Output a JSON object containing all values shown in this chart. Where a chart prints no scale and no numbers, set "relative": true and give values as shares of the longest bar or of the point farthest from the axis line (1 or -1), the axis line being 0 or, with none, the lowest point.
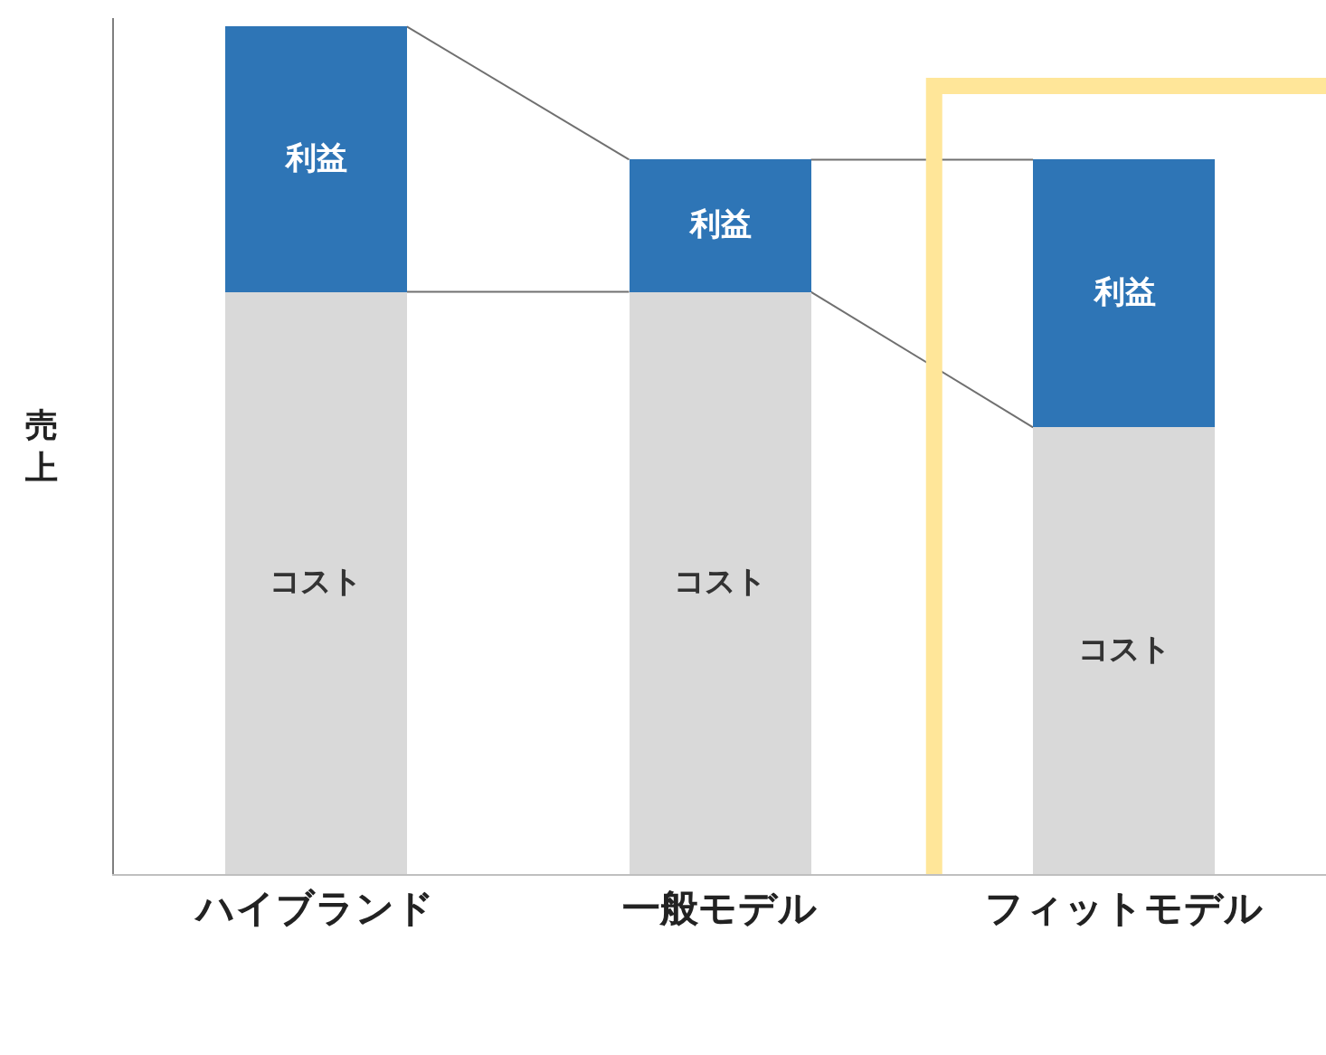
{
  "chart_data": {
    "type": "bar",
    "stacked": true,
    "relative": true,
    "ylabel": "売上",
    "legend": false,
    "categories": [
      "ハイブランド",
      "一般モデル",
      "フィットモデル"
    ],
    "series": [
      {
        "name": "コスト",
        "color": "#d9d9d9",
        "values": [
          0.687,
          0.687,
          0.527
        ]
      },
      {
        "name": "利益",
        "color": "#2e75b6",
        "values": [
          0.313,
          0.156,
          0.316
        ]
      }
    ]
  }
}
